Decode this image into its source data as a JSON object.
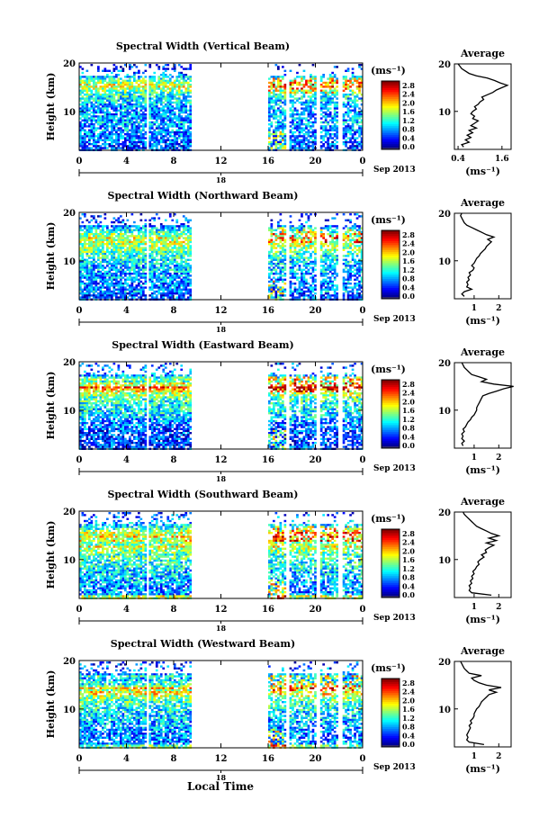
{
  "figure": {
    "x_axis_title": "Local Time",
    "date_label_suffix": "Sep 2013"
  },
  "chart_data": [
    {
      "type": "heatmap",
      "title": "Spectral Width (Vertical Beam)",
      "ylabel": "Height (km)",
      "y_ticks": [
        10,
        20
      ],
      "ylim": [
        2,
        20
      ],
      "x_ticks": [
        "0",
        "4",
        "8",
        "12",
        "16",
        "20",
        "0"
      ],
      "xlim": [
        0,
        24
      ],
      "date_tick": "18",
      "data_intervals_hours": [
        [
          0,
          5.6
        ],
        [
          5.9,
          9.4
        ],
        [
          16.0,
          17.4
        ],
        [
          17.8,
          20.0
        ],
        [
          20.4,
          21.8
        ],
        [
          22.3,
          24
        ]
      ],
      "colorbar": {
        "unit": "(ms⁻¹)",
        "ticks": [
          "2.8",
          "2.4",
          "2.0",
          "1.6",
          "1.2",
          "0.8",
          "0.4",
          "0.0"
        ]
      },
      "average_profile": {
        "title": "Average",
        "xlabel": "(ms⁻¹)",
        "x_ticks": [
          "0.4",
          "1.6"
        ],
        "xlim": [
          0.3,
          1.85
        ],
        "ylim": [
          2,
          20
        ],
        "y_ticks": [
          10,
          20
        ],
        "height_km": [
          2.5,
          3,
          3.5,
          4,
          4.5,
          5,
          5.5,
          6,
          6.5,
          7,
          7.5,
          8,
          8.5,
          9,
          9.5,
          10,
          10.5,
          11,
          11.5,
          12,
          12.5,
          13,
          13.5,
          14,
          14.5,
          15,
          15.5,
          16,
          16.5,
          17,
          17.5,
          18,
          18.5,
          19,
          19.5,
          20
        ],
        "width_ms": [
          0.55,
          0.5,
          0.7,
          0.6,
          0.75,
          0.65,
          0.8,
          0.7,
          0.9,
          0.75,
          0.85,
          0.95,
          0.8,
          0.85,
          0.75,
          0.8,
          0.9,
          0.85,
          0.95,
          1.0,
          1.1,
          1.05,
          1.2,
          1.35,
          1.45,
          1.6,
          1.75,
          1.55,
          1.4,
          1.2,
          0.9,
          0.7,
          0.6,
          0.5,
          0.45,
          0.4
        ]
      }
    },
    {
      "type": "heatmap",
      "title": "Spectral Width (Northward Beam)",
      "ylabel": "Height (km)",
      "y_ticks": [
        10,
        20
      ],
      "ylim": [
        2,
        20
      ],
      "x_ticks": [
        "0",
        "4",
        "8",
        "12",
        "16",
        "20",
        "0"
      ],
      "xlim": [
        0,
        24
      ],
      "date_tick": "18",
      "data_intervals_hours": [
        [
          0,
          5.6
        ],
        [
          5.9,
          9.4
        ],
        [
          16.0,
          17.4
        ],
        [
          17.8,
          20.0
        ],
        [
          20.4,
          21.8
        ],
        [
          22.3,
          24
        ]
      ],
      "colorbar": {
        "unit": "(ms⁻¹)",
        "ticks": [
          "2.8",
          "2.4",
          "2.0",
          "1.6",
          "1.2",
          "0.8",
          "0.4",
          "0.0"
        ]
      },
      "average_profile": {
        "title": "Average",
        "xlabel": "(ms⁻¹)",
        "x_ticks": [
          "1",
          "2"
        ],
        "xlim": [
          0.2,
          2.5
        ],
        "ylim": [
          2,
          20
        ],
        "y_ticks": [
          10,
          20
        ],
        "height_km": [
          2.5,
          3,
          3.5,
          4,
          4.5,
          5,
          5.5,
          6,
          6.5,
          7,
          7.5,
          8,
          8.5,
          9,
          9.5,
          10,
          10.5,
          11,
          11.5,
          12,
          12.5,
          13,
          13.5,
          14,
          14.5,
          15,
          15.5,
          16,
          16.5,
          17,
          17.5,
          18,
          18.5,
          19,
          19.5,
          20
        ],
        "width_ms": [
          0.6,
          0.5,
          0.6,
          0.9,
          0.7,
          0.75,
          0.7,
          0.8,
          0.75,
          0.85,
          0.8,
          0.95,
          1.0,
          0.9,
          1.0,
          1.05,
          1.1,
          1.2,
          1.25,
          1.35,
          1.45,
          1.5,
          1.6,
          1.7,
          1.55,
          1.8,
          1.5,
          1.3,
          1.1,
          0.9,
          0.7,
          0.6,
          0.55,
          0.5,
          0.45,
          0.5
        ]
      }
    },
    {
      "type": "heatmap",
      "title": "Spectral Width (Eastward Beam)",
      "ylabel": "Height (km)",
      "y_ticks": [
        10,
        20
      ],
      "ylim": [
        2,
        20
      ],
      "x_ticks": [
        "0",
        "4",
        "8",
        "12",
        "16",
        "20",
        "0"
      ],
      "xlim": [
        0,
        24
      ],
      "date_tick": "18",
      "data_intervals_hours": [
        [
          0,
          5.6
        ],
        [
          5.9,
          9.4
        ],
        [
          16.0,
          17.4
        ],
        [
          17.8,
          20.0
        ],
        [
          20.4,
          21.8
        ],
        [
          22.3,
          24
        ]
      ],
      "colorbar": {
        "unit": "(ms⁻¹)",
        "ticks": [
          "2.8",
          "2.4",
          "2.0",
          "1.6",
          "1.2",
          "0.8",
          "0.4",
          "0.0"
        ]
      },
      "average_profile": {
        "title": "Average",
        "xlabel": "(ms⁻¹)",
        "x_ticks": [
          "1",
          "2"
        ],
        "xlim": [
          0.2,
          2.5
        ],
        "ylim": [
          2,
          20
        ],
        "y_ticks": [
          10,
          20
        ],
        "height_km": [
          2.5,
          3,
          3.5,
          4,
          4.5,
          5,
          5.5,
          6,
          6.5,
          7,
          7.5,
          8,
          8.5,
          9,
          9.5,
          10,
          10.5,
          11,
          11.5,
          12,
          12.5,
          13,
          13.5,
          14,
          14.5,
          15,
          15.5,
          16,
          16.5,
          17,
          17.5,
          18,
          18.5,
          19,
          19.5,
          20
        ],
        "width_ms": [
          0.55,
          0.5,
          0.6,
          0.5,
          0.55,
          0.5,
          0.6,
          0.55,
          0.65,
          0.7,
          0.75,
          0.85,
          0.9,
          1.0,
          1.05,
          1.1,
          1.1,
          1.15,
          1.2,
          1.25,
          1.3,
          1.35,
          1.6,
          1.9,
          2.2,
          2.6,
          1.8,
          1.3,
          1.5,
          1.2,
          0.9,
          0.8,
          0.7,
          0.6,
          0.55,
          0.5
        ]
      }
    },
    {
      "type": "heatmap",
      "title": "Spectral Width (Southward Beam)",
      "ylabel": "Height (km)",
      "y_ticks": [
        10,
        20
      ],
      "ylim": [
        2,
        20
      ],
      "x_ticks": [
        "0",
        "4",
        "8",
        "12",
        "16",
        "20",
        "0"
      ],
      "xlim": [
        0,
        24
      ],
      "date_tick": "18",
      "data_intervals_hours": [
        [
          0,
          5.6
        ],
        [
          5.9,
          9.4
        ],
        [
          16.0,
          17.4
        ],
        [
          17.8,
          20.0
        ],
        [
          20.4,
          21.8
        ],
        [
          22.3,
          24
        ]
      ],
      "colorbar": {
        "unit": "(ms⁻¹)",
        "ticks": [
          "2.8",
          "2.4",
          "2.0",
          "1.6",
          "1.2",
          "0.8",
          "0.4",
          "0.0"
        ]
      },
      "average_profile": {
        "title": "Average",
        "xlabel": "(ms⁻¹)",
        "x_ticks": [
          "1",
          "2"
        ],
        "xlim": [
          0.2,
          2.5
        ],
        "ylim": [
          2,
          20
        ],
        "y_ticks": [
          10,
          20
        ],
        "height_km": [
          2.5,
          3,
          3.5,
          4,
          4.5,
          5,
          5.5,
          6,
          6.5,
          7,
          7.5,
          8,
          8.5,
          9,
          9.5,
          10,
          10.5,
          11,
          11.5,
          12,
          12.5,
          13,
          13.5,
          14,
          14.5,
          15,
          15.5,
          16,
          16.5,
          17,
          17.5,
          18,
          18.5,
          19,
          19.5,
          20
        ],
        "width_ms": [
          1.7,
          0.9,
          0.8,
          0.85,
          0.8,
          0.9,
          0.85,
          0.95,
          0.9,
          1.0,
          0.95,
          1.05,
          1.1,
          1.2,
          1.15,
          1.25,
          1.4,
          1.3,
          1.5,
          1.45,
          1.6,
          1.8,
          1.5,
          1.9,
          1.6,
          2.0,
          1.7,
          1.5,
          1.3,
          1.1,
          1.0,
          0.9,
          0.8,
          0.7,
          0.6,
          0.55
        ]
      }
    },
    {
      "type": "heatmap",
      "title": "Spectral Width (Westward Beam)",
      "ylabel": "Height (km)",
      "y_ticks": [
        10,
        20
      ],
      "ylim": [
        2,
        20
      ],
      "x_ticks": [
        "0",
        "4",
        "8",
        "12",
        "16",
        "20",
        "0"
      ],
      "xlim": [
        0,
        24
      ],
      "date_tick": "18",
      "data_intervals_hours": [
        [
          0,
          5.6
        ],
        [
          5.9,
          9.4
        ],
        [
          16.0,
          17.4
        ],
        [
          17.8,
          20.0
        ],
        [
          20.4,
          21.8
        ],
        [
          22.3,
          24
        ]
      ],
      "colorbar": {
        "unit": "(ms⁻¹)",
        "ticks": [
          "2.8",
          "2.4",
          "2.0",
          "1.6",
          "1.2",
          "0.8",
          "0.4",
          "0.0"
        ]
      },
      "average_profile": {
        "title": "Average",
        "xlabel": "(ms⁻¹)",
        "x_ticks": [
          "1",
          "2"
        ],
        "xlim": [
          0.2,
          2.5
        ],
        "ylim": [
          2,
          20
        ],
        "y_ticks": [
          10,
          20
        ],
        "height_km": [
          2.5,
          3,
          3.5,
          4,
          4.5,
          5,
          5.5,
          6,
          6.5,
          7,
          7.5,
          8,
          8.5,
          9,
          9.5,
          10,
          10.5,
          11,
          11.5,
          12,
          12.5,
          13,
          13.5,
          14,
          14.5,
          15,
          15.5,
          16,
          16.5,
          17,
          17.5,
          18,
          18.5,
          19,
          19.5,
          20
        ],
        "width_ms": [
          1.4,
          0.8,
          0.7,
          0.75,
          0.7,
          0.75,
          0.8,
          0.85,
          0.8,
          0.9,
          0.85,
          0.95,
          1.0,
          1.0,
          1.05,
          1.1,
          1.2,
          1.25,
          1.3,
          1.4,
          1.5,
          1.6,
          1.9,
          1.6,
          2.1,
          1.5,
          1.2,
          1.0,
          0.9,
          1.3,
          0.8,
          0.7,
          0.6,
          0.55,
          0.5,
          0.45
        ]
      }
    }
  ]
}
